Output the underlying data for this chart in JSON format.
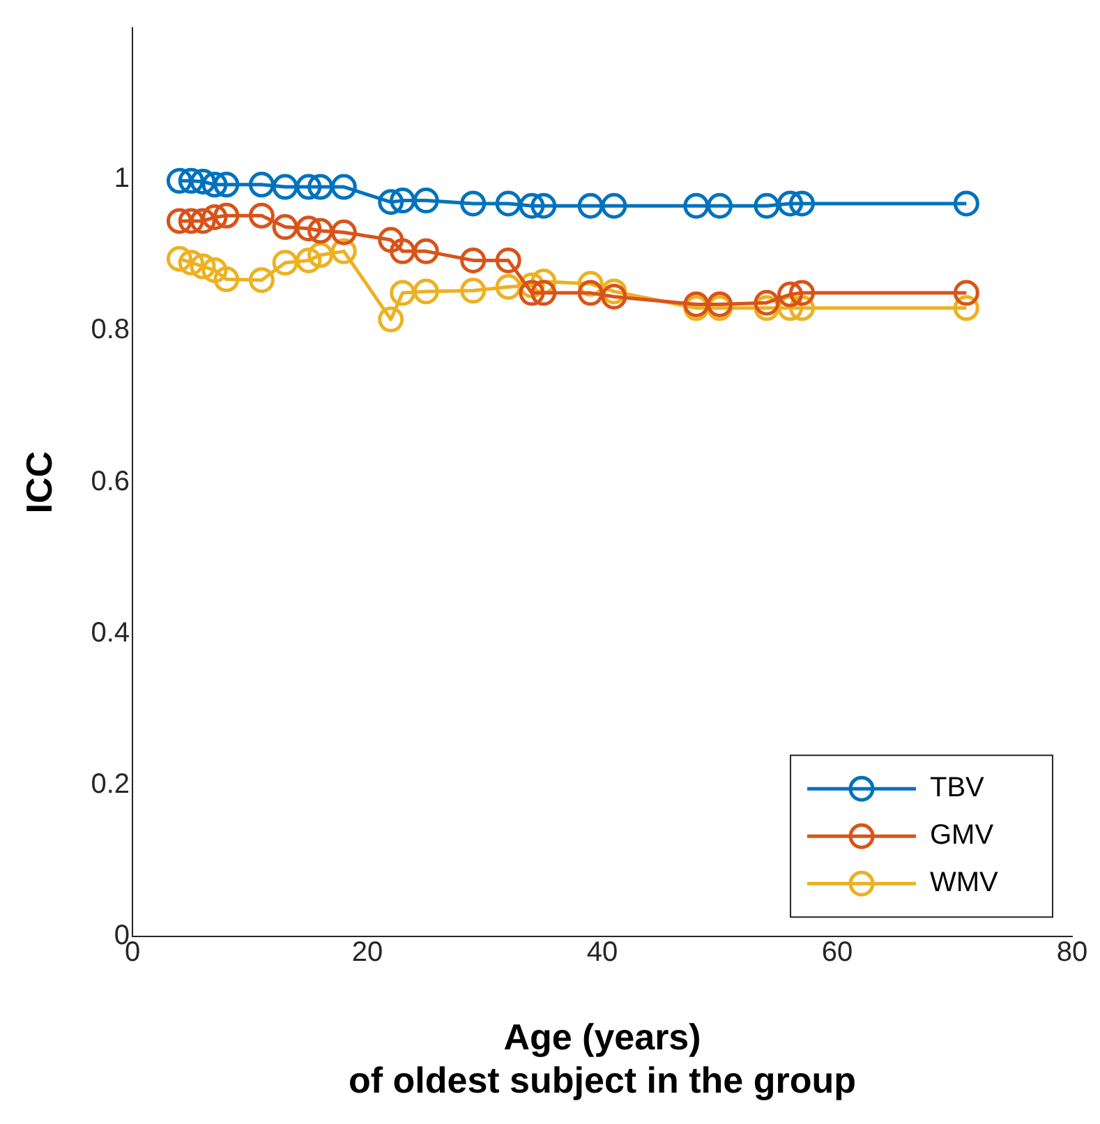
{
  "chart_data": {
    "type": "line",
    "xlabel": "Age (years)\nof oldest subject in the group",
    "ylabel": "ICC",
    "x": [
      4,
      5,
      6,
      7,
      8,
      11,
      13,
      15,
      16,
      18,
      22,
      23,
      25,
      29,
      32,
      34,
      35,
      39,
      41,
      48,
      50,
      54,
      56,
      57,
      71
    ],
    "series": [
      {
        "name": "TBV",
        "color": "#0072bd",
        "values": [
          0.998,
          0.998,
          0.997,
          0.993,
          0.993,
          0.993,
          0.99,
          0.99,
          0.99,
          0.99,
          0.97,
          0.972,
          0.972,
          0.968,
          0.968,
          0.965,
          0.965,
          0.965,
          0.965,
          0.965,
          0.965,
          0.965,
          0.968,
          0.968,
          0.968
        ]
      },
      {
        "name": "GMV",
        "color": "#d95319",
        "values": [
          0.945,
          0.945,
          0.945,
          0.95,
          0.952,
          0.952,
          0.937,
          0.935,
          0.932,
          0.93,
          0.92,
          0.905,
          0.905,
          0.893,
          0.893,
          0.85,
          0.85,
          0.85,
          0.845,
          0.835,
          0.835,
          0.837,
          0.848,
          0.85,
          0.85
        ]
      },
      {
        "name": "WMV",
        "color": "#edb120",
        "values": [
          0.895,
          0.89,
          0.885,
          0.88,
          0.868,
          0.867,
          0.89,
          0.893,
          0.9,
          0.905,
          0.815,
          0.85,
          0.852,
          0.853,
          0.858,
          0.86,
          0.865,
          0.862,
          0.852,
          0.83,
          0.83,
          0.83,
          0.83,
          0.83,
          0.83
        ]
      }
    ],
    "xlim": [
      0,
      80
    ],
    "xticks": [
      0,
      20,
      40,
      60,
      80
    ],
    "ylim": [
      0,
      1.2
    ],
    "yticks": [
      0,
      0.2,
      0.4,
      0.6,
      0.8,
      1
    ],
    "legend": "bottom right",
    "marker": "circle",
    "line_style": "solid",
    "grid": false
  }
}
